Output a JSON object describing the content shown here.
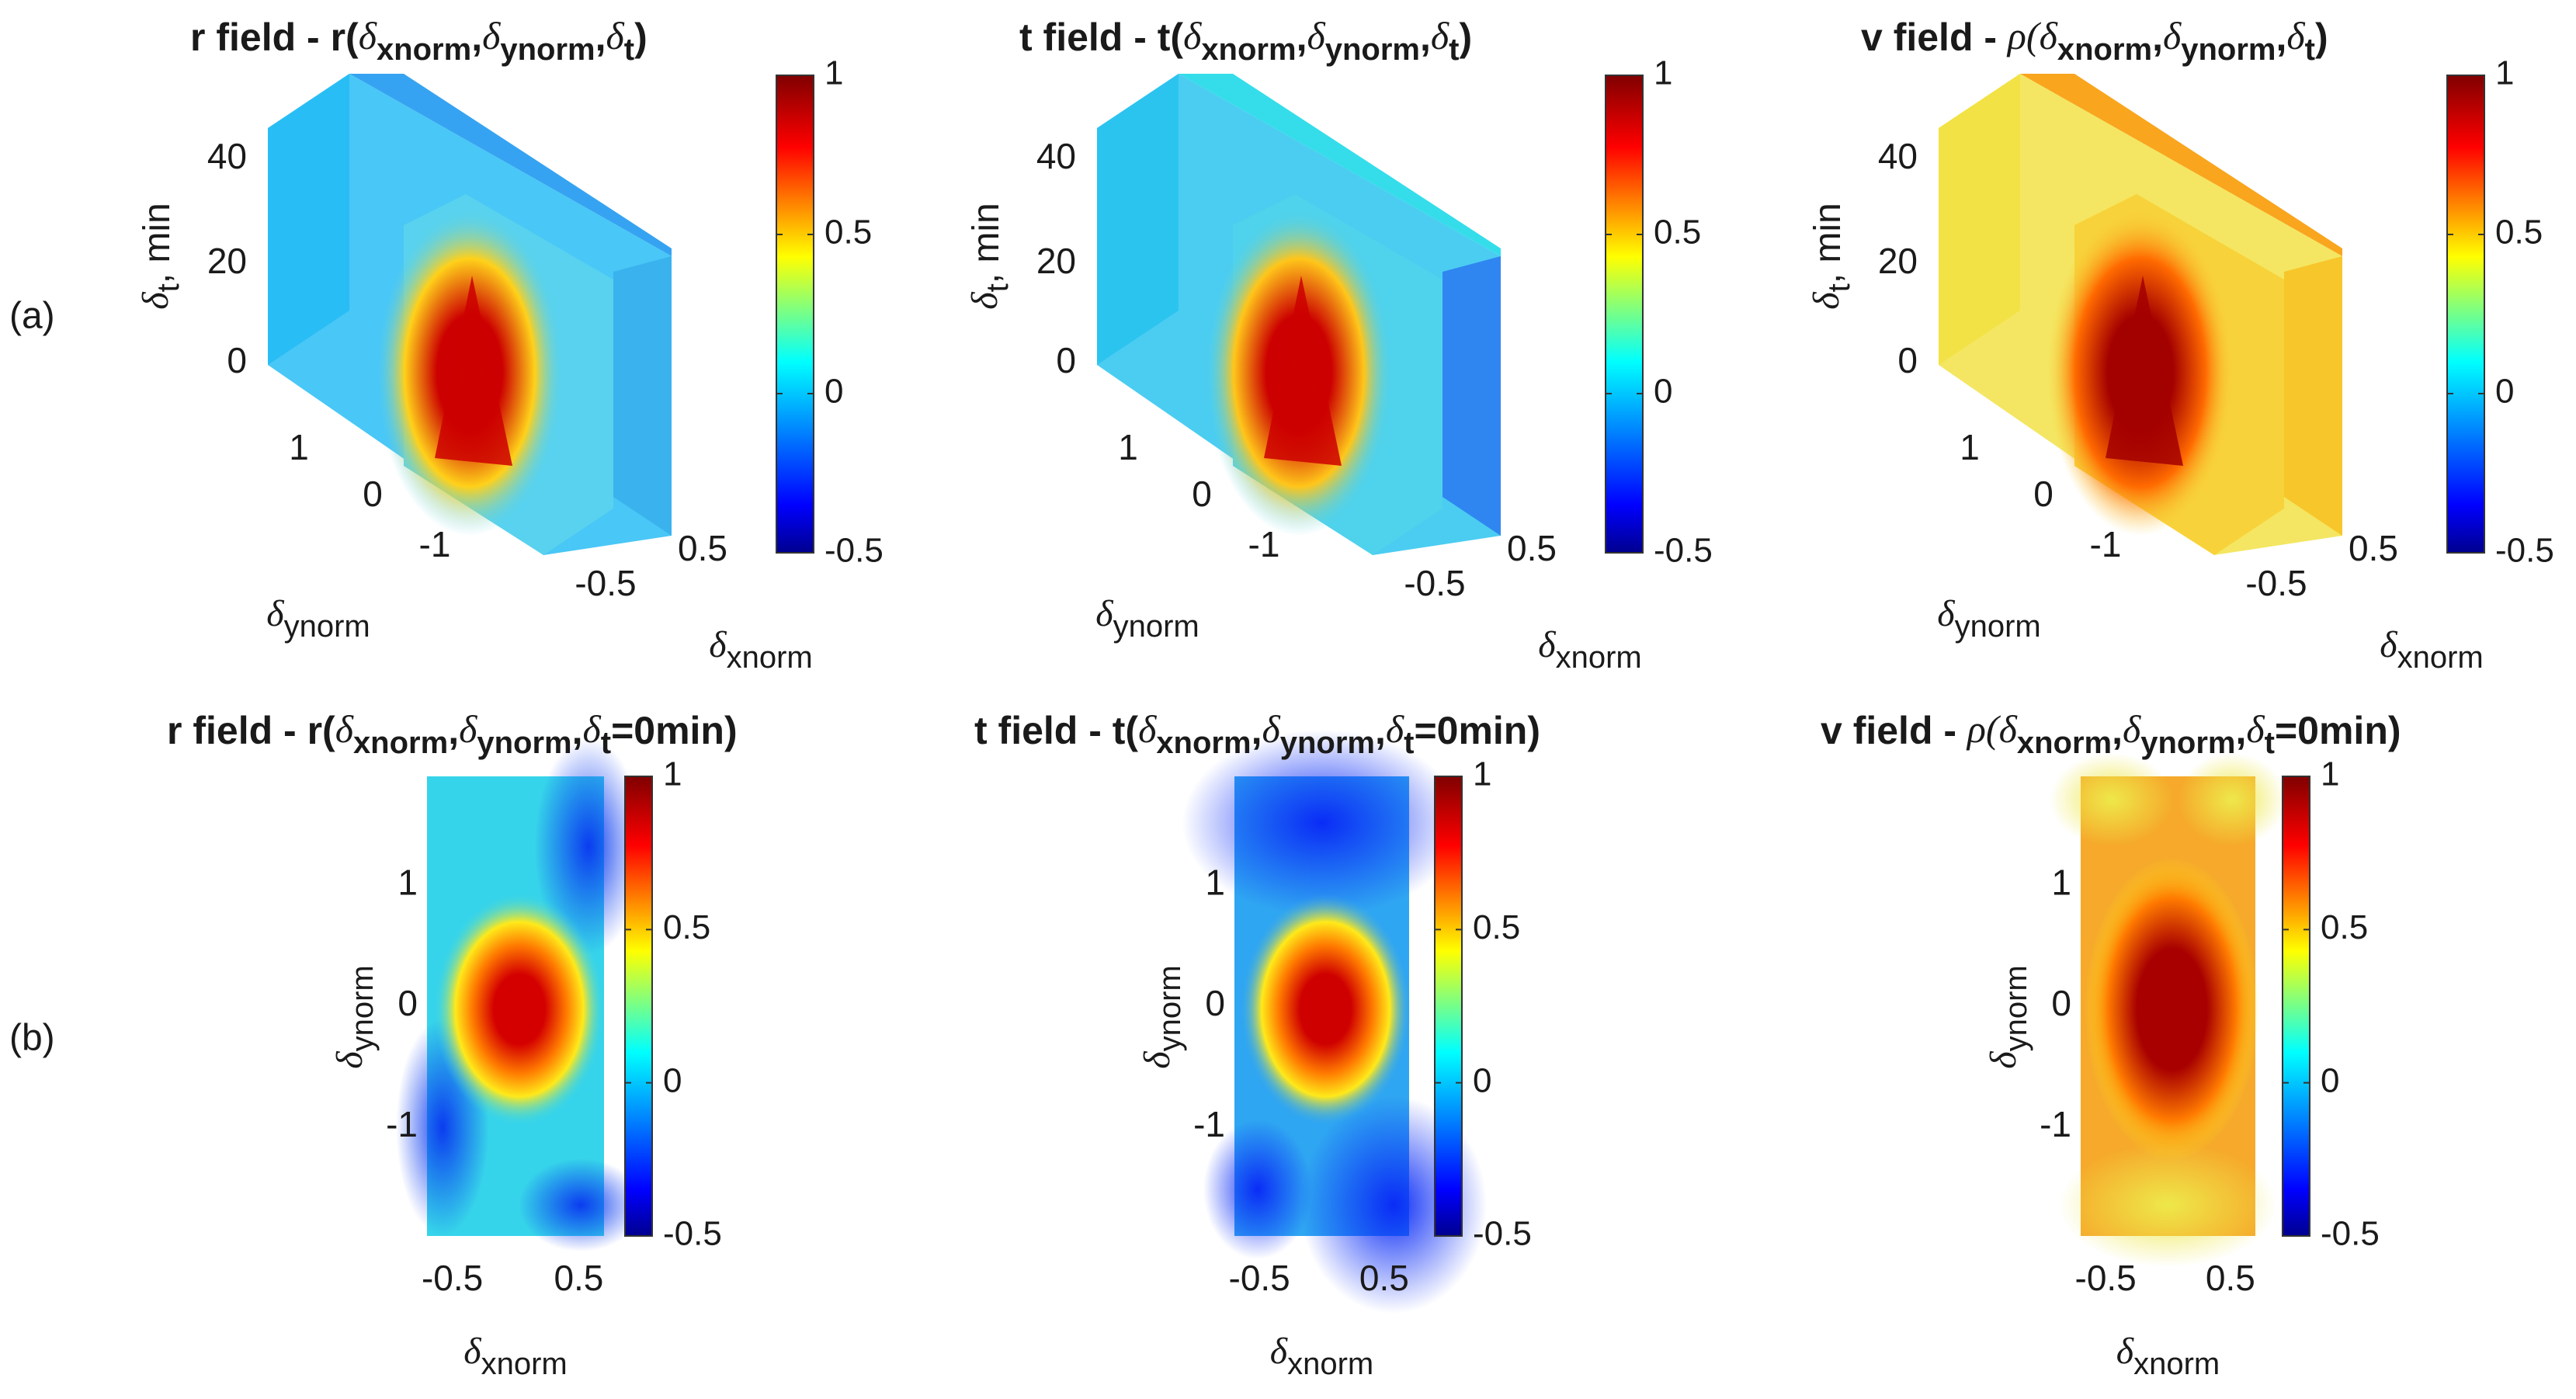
{
  "row_labels": [
    "(a)",
    "(b)"
  ],
  "colormap": {
    "name": "jet",
    "stops": [
      "#00008f",
      "#0000ff",
      "#00ffff",
      "#ffff00",
      "#ff0000",
      "#800000"
    ],
    "ticks": [
      "1",
      "0.5",
      "0",
      "-0.5"
    ],
    "clim": [
      -0.5,
      1
    ]
  },
  "chart_data": [
    {
      "type": "heatmap",
      "row": "a",
      "title": {
        "prefix": "r field - r(",
        "sym": "δ",
        "s1": "xnorm",
        "s2": "ynorm",
        "s3": "t",
        "suffix": ")"
      },
      "xlabel": {
        "sym": "δ",
        "sub": "xnorm"
      },
      "ylabel": {
        "sym": "δ",
        "sub": "ynorm"
      },
      "zlabel": {
        "sym": "δ",
        "sub": "t",
        "rest": ", min"
      },
      "x_ticks": [
        "-0.5",
        "0.5"
      ],
      "y_ticks": [
        "-1",
        "0",
        "1"
      ],
      "z_ticks": [
        "0",
        "20",
        "40"
      ],
      "xlim": [
        -0.7,
        0.7
      ],
      "ylim": [
        -1.9,
        1.9
      ],
      "zlim": [
        -5,
        48
      ],
      "peak_value": 1.0,
      "background_value": 0.05,
      "colors": {
        "side": "#29bdf5",
        "top": "#36a3f2",
        "front": "#3ab2ee",
        "mid_face": "#58d2ee",
        "hot": "#cc0000",
        "warm": "#ffd11a"
      }
    },
    {
      "type": "heatmap",
      "row": "a",
      "title": {
        "prefix": "t field - t(",
        "sym": "δ",
        "s1": "xnorm",
        "s2": "ynorm",
        "s3": "t",
        "suffix": ")"
      },
      "xlabel": {
        "sym": "δ",
        "sub": "xnorm"
      },
      "ylabel": {
        "sym": "δ",
        "sub": "ynorm"
      },
      "zlabel": {
        "sym": "δ",
        "sub": "t",
        "rest": ", min"
      },
      "x_ticks": [
        "-0.5",
        "0.5"
      ],
      "y_ticks": [
        "-1",
        "0",
        "1"
      ],
      "z_ticks": [
        "0",
        "20",
        "40"
      ],
      "xlim": [
        -0.7,
        0.7
      ],
      "ylim": [
        -1.9,
        1.9
      ],
      "zlim": [
        -5,
        48
      ],
      "peak_value": 1.0,
      "background_value": 0.0,
      "colors": {
        "side": "#2bc4ef",
        "top": "#35ddea",
        "front": "#2f86f0",
        "mid_face": "#4fd2ec",
        "hot": "#cc0000",
        "warm": "#ffc61a"
      }
    },
    {
      "type": "heatmap",
      "row": "a",
      "title": {
        "prefix": "v field - ",
        "sym": "ρ(δ",
        "s1": "xnorm",
        "s2": "ynorm",
        "s3": "t",
        "suffix": ")"
      },
      "xlabel": {
        "sym": "δ",
        "sub": "xnorm"
      },
      "ylabel": {
        "sym": "δ",
        "sub": "ynorm"
      },
      "zlabel": {
        "sym": "δ",
        "sub": "t",
        "rest": ", min"
      },
      "x_ticks": [
        "-0.5",
        "0.5"
      ],
      "y_ticks": [
        "-1",
        "0",
        "1"
      ],
      "z_ticks": [
        "0",
        "20",
        "40"
      ],
      "xlim": [
        -0.7,
        0.7
      ],
      "ylim": [
        -1.9,
        1.9
      ],
      "zlim": [
        -5,
        48
      ],
      "peak_value": 1.0,
      "background_value": 0.6,
      "colors": {
        "side": "#f2e246",
        "top": "#f9a51e",
        "front": "#f7c62b",
        "mid_face": "#f8d23a",
        "hot": "#a30000",
        "warm": "#ff6a00"
      }
    },
    {
      "type": "heatmap",
      "row": "b",
      "title": {
        "prefix": "r field - r(",
        "sym": "δ",
        "s1": "xnorm",
        "s2": "ynorm",
        "s3": "t",
        "suffix": "=0min)"
      },
      "xlabel": {
        "sym": "δ",
        "sub": "xnorm"
      },
      "ylabel": {
        "sym": "δ",
        "sub": "ynorm"
      },
      "x_ticks": [
        "-0.5",
        "0.5"
      ],
      "y_ticks": [
        "1",
        "0",
        "-1"
      ],
      "xlim": [
        -0.7,
        0.7
      ],
      "ylim": [
        -1.9,
        1.9
      ],
      "peak_value": 1.0,
      "background_value": 0.1,
      "colors": {
        "base": "#36d4ea",
        "cold": "#0b3cf0",
        "hot": "#d40000"
      }
    },
    {
      "type": "heatmap",
      "row": "b",
      "title": {
        "prefix": "t field - t(",
        "sym": "δ",
        "s1": "xnorm",
        "s2": "ynorm",
        "s3": "t",
        "suffix": "=0min)"
      },
      "xlabel": {
        "sym": "δ",
        "sub": "xnorm"
      },
      "ylabel": {
        "sym": "δ",
        "sub": "ynorm"
      },
      "x_ticks": [
        "-0.5",
        "0.5"
      ],
      "y_ticks": [
        "1",
        "0",
        "-1"
      ],
      "xlim": [
        -0.7,
        0.7
      ],
      "ylim": [
        -1.9,
        1.9
      ],
      "peak_value": 1.0,
      "background_value": -0.1,
      "colors": {
        "base": "#2fa6f2",
        "cold": "#0a2cf6",
        "hot": "#cf0000"
      }
    },
    {
      "type": "heatmap",
      "row": "b",
      "title": {
        "prefix": "v field - ",
        "sym": "ρ(δ",
        "s1": "xnorm",
        "s2": "ynorm",
        "s3": "t",
        "suffix": "=0min)"
      },
      "xlabel": {
        "sym": "δ",
        "sub": "xnorm"
      },
      "ylabel": {
        "sym": "δ",
        "sub": "ynorm"
      },
      "x_ticks": [
        "-0.5",
        "0.5"
      ],
      "y_ticks": [
        "1",
        "0",
        "-1"
      ],
      "xlim": [
        -0.7,
        0.7
      ],
      "ylim": [
        -1.9,
        1.9
      ],
      "peak_value": 1.0,
      "background_value": 0.55,
      "colors": {
        "base": "#f6a92a",
        "cold": "#eee84a",
        "hot": "#a80000"
      }
    }
  ]
}
